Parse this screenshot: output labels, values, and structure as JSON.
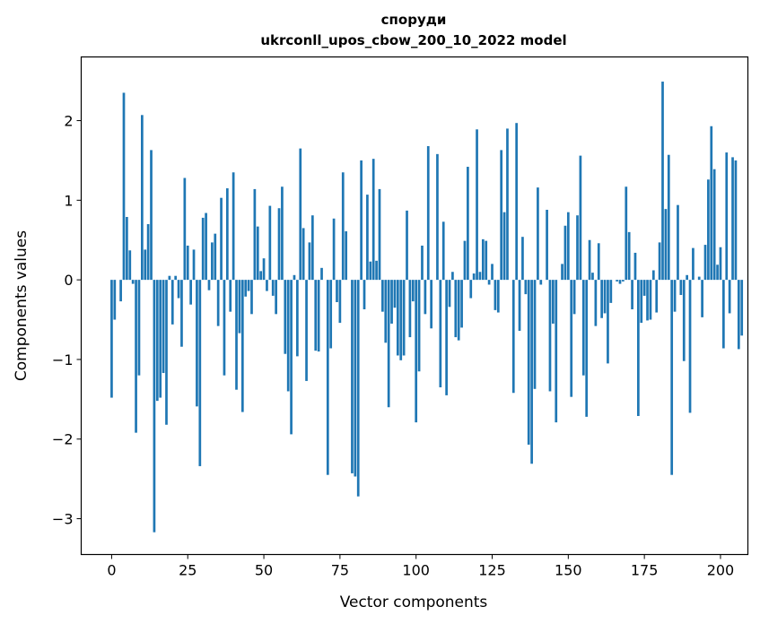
{
  "chart_data": {
    "type": "bar",
    "title_line1": "споруди",
    "title_line2": "ukrconll_upos_cbow_200_10_2022 model",
    "xlabel": "Vector components",
    "ylabel": "Components values",
    "xlim": [
      -10,
      209
    ],
    "ylim": [
      -3.45,
      2.8
    ],
    "xticks": [
      0,
      25,
      50,
      75,
      100,
      125,
      150,
      175,
      200
    ],
    "yticks": [
      -3,
      -2,
      -1,
      0,
      1,
      2
    ],
    "ytick_labels": [
      "−3",
      "−2",
      "−1",
      "0",
      "1",
      "2"
    ],
    "bar_color": "#1f77b4",
    "values": [
      -1.48,
      -0.5,
      0.0,
      -0.27,
      2.35,
      0.79,
      0.37,
      -0.05,
      -1.92,
      -1.2,
      2.07,
      0.38,
      0.7,
      1.63,
      -3.17,
      -1.52,
      -1.48,
      -1.17,
      -1.82,
      0.05,
      -0.56,
      0.05,
      -0.23,
      -0.84,
      1.28,
      0.43,
      -0.31,
      0.38,
      -1.59,
      -2.34,
      0.78,
      0.84,
      -0.13,
      0.47,
      0.58,
      -0.58,
      1.03,
      -1.2,
      1.15,
      -0.4,
      1.35,
      -1.38,
      -0.67,
      -1.66,
      -0.21,
      -0.14,
      -0.43,
      1.14,
      0.67,
      0.11,
      0.27,
      -0.14,
      0.93,
      -0.2,
      -0.43,
      0.9,
      1.17,
      -0.93,
      -1.4,
      -1.94,
      0.06,
      -0.96,
      1.65,
      0.65,
      -1.27,
      0.47,
      0.81,
      -0.89,
      -0.9,
      0.15,
      0.0,
      -2.45,
      -0.86,
      0.77,
      -0.28,
      -0.54,
      1.35,
      0.61,
      0.0,
      -2.43,
      -2.47,
      -2.72,
      1.5,
      -0.37,
      1.07,
      0.23,
      1.52,
      0.24,
      1.14,
      -0.4,
      -0.79,
      -1.6,
      -0.55,
      -0.35,
      -0.95,
      -1.01,
      -0.95,
      0.87,
      -0.72,
      -0.27,
      -1.79,
      -1.15,
      0.43,
      -0.43,
      1.68,
      -0.61,
      0.0,
      1.58,
      -1.35,
      0.73,
      -1.45,
      -0.34,
      0.1,
      -0.72,
      -0.76,
      -0.6,
      0.49,
      1.42,
      -0.23,
      0.08,
      1.89,
      0.1,
      0.51,
      0.49,
      -0.06,
      0.2,
      -0.38,
      -0.41,
      1.63,
      0.85,
      1.9,
      0.0,
      -1.42,
      1.97,
      -0.64,
      0.54,
      -0.18,
      -2.07,
      -2.31,
      -1.37,
      1.16,
      -0.06,
      0.0,
      0.88,
      -1.4,
      -0.55,
      -1.79,
      0.0,
      0.2,
      0.68,
      0.85,
      -1.47,
      -0.43,
      0.81,
      1.56,
      -1.2,
      -1.72,
      0.5,
      0.09,
      -0.58,
      0.46,
      -0.48,
      -0.42,
      -1.05,
      -0.29,
      0.0,
      -0.02,
      -0.05,
      -0.02,
      1.17,
      0.6,
      -0.37,
      0.34,
      -1.71,
      -0.54,
      -0.2,
      -0.51,
      -0.5,
      0.12,
      -0.41,
      0.47,
      2.49,
      0.89,
      1.57,
      -2.45,
      -0.4,
      0.94,
      -0.19,
      -1.02,
      0.06,
      -1.67,
      0.4,
      0.0,
      0.04,
      -0.47,
      0.44,
      1.26,
      1.93,
      1.39,
      0.19,
      0.41,
      -0.86,
      1.6,
      -0.42,
      1.54,
      1.5,
      -0.87,
      -0.7
    ]
  }
}
